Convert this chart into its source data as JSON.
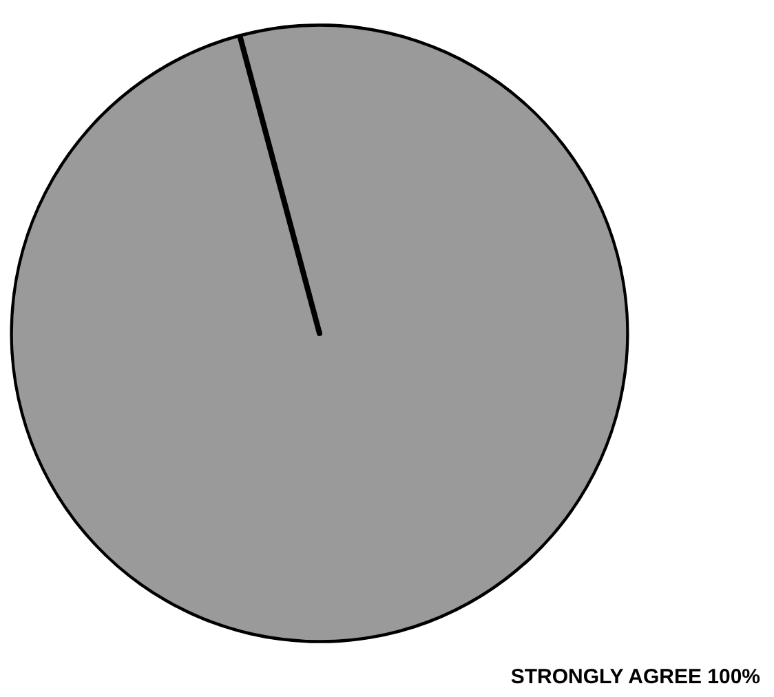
{
  "chart_data": {
    "type": "pie",
    "categories": [
      "STRONGLY AGREE"
    ],
    "values": [
      100
    ],
    "value_labels": [
      "100%"
    ],
    "colors": [
      "#9a9a9a"
    ]
  }
}
